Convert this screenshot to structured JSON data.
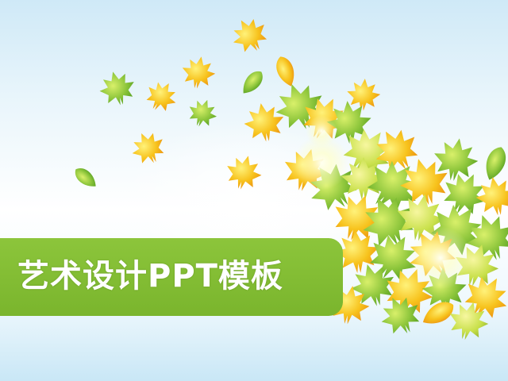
{
  "slide": {
    "title": "艺术设计PPT模板"
  },
  "colors": {
    "title_bar": "#8cc53b",
    "title_text": "#ffffff",
    "background_top": "#cfe9f7",
    "leaf_yellow": "#f7c21c",
    "leaf_orange": "#f0a21a",
    "leaf_green": "#7cc12a"
  },
  "decoration": {
    "icons": [
      "maple-leaf-icon",
      "round-leaf-icon",
      "sun-flare-icon"
    ]
  }
}
